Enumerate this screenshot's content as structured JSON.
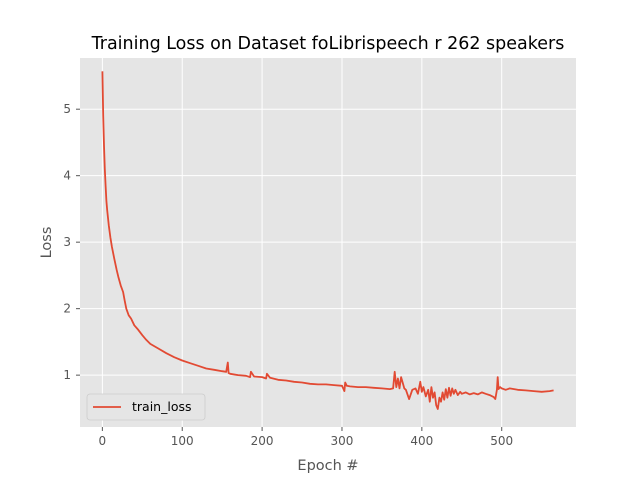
{
  "chart_data": {
    "type": "line",
    "title": "Training Loss on Dataset foLibrispeech r 262 speakers",
    "xlabel": "Epoch #",
    "ylabel": "Loss",
    "xlim": [
      -28,
      593
    ],
    "ylim": [
      0.22,
      5.77
    ],
    "xticks": [
      0,
      100,
      200,
      300,
      400,
      500
    ],
    "yticks": [
      1,
      2,
      3,
      4,
      5
    ],
    "grid": true,
    "legend_position": "lower-left",
    "series": [
      {
        "name": "train_loss",
        "color": "#e24a33",
        "x": [
          0,
          1,
          2,
          3,
          4,
          5,
          6,
          8,
          10,
          12,
          15,
          18,
          20,
          23,
          26,
          28,
          30,
          33,
          36,
          40,
          45,
          50,
          55,
          60,
          70,
          80,
          90,
          100,
          110,
          120,
          130,
          140,
          150,
          155,
          157,
          158,
          160,
          170,
          180,
          185,
          186,
          190,
          200,
          205,
          206,
          210,
          220,
          230,
          240,
          250,
          260,
          270,
          280,
          290,
          300,
          303,
          304,
          306,
          310,
          320,
          330,
          340,
          350,
          360,
          364,
          366,
          368,
          370,
          372,
          374,
          378,
          380,
          384,
          388,
          392,
          395,
          398,
          400,
          402,
          405,
          408,
          410,
          412,
          414,
          416,
          418,
          420,
          422,
          424,
          426,
          428,
          430,
          432,
          434,
          436,
          438,
          440,
          442,
          445,
          448,
          450,
          455,
          460,
          465,
          470,
          475,
          480,
          485,
          490,
          492,
          494,
          495,
          496,
          498,
          500,
          505,
          510,
          520,
          530,
          540,
          550,
          560,
          565
        ],
        "values": [
          5.57,
          4.9,
          4.45,
          4.1,
          3.85,
          3.62,
          3.48,
          3.25,
          3.07,
          2.93,
          2.75,
          2.58,
          2.48,
          2.35,
          2.25,
          2.12,
          2.0,
          1.9,
          1.85,
          1.75,
          1.68,
          1.6,
          1.53,
          1.47,
          1.4,
          1.33,
          1.27,
          1.22,
          1.18,
          1.14,
          1.1,
          1.08,
          1.06,
          1.05,
          1.19,
          1.03,
          1.02,
          1.0,
          0.99,
          0.97,
          1.05,
          0.98,
          0.97,
          0.95,
          1.02,
          0.96,
          0.93,
          0.92,
          0.9,
          0.89,
          0.87,
          0.86,
          0.86,
          0.85,
          0.84,
          0.76,
          0.89,
          0.84,
          0.83,
          0.82,
          0.82,
          0.81,
          0.8,
          0.79,
          0.8,
          1.05,
          0.82,
          0.95,
          0.8,
          0.97,
          0.8,
          0.78,
          0.64,
          0.78,
          0.8,
          0.72,
          0.9,
          0.75,
          0.82,
          0.68,
          0.78,
          0.6,
          0.82,
          0.66,
          0.74,
          0.55,
          0.49,
          0.66,
          0.6,
          0.74,
          0.63,
          0.79,
          0.66,
          0.81,
          0.69,
          0.8,
          0.72,
          0.78,
          0.7,
          0.75,
          0.72,
          0.74,
          0.71,
          0.73,
          0.71,
          0.74,
          0.72,
          0.7,
          0.67,
          0.64,
          0.78,
          0.97,
          0.79,
          0.82,
          0.8,
          0.78,
          0.8,
          0.78,
          0.77,
          0.76,
          0.75,
          0.76,
          0.77
        ]
      }
    ]
  }
}
